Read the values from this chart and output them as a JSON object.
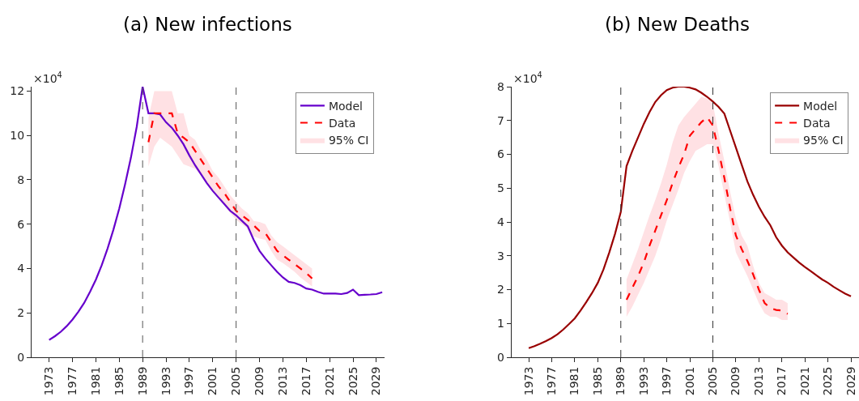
{
  "chart_data": [
    {
      "type": "line",
      "title": "(a) New infections",
      "annotations": [
        "×10$^{4}$"
      ],
      "xlim": [
        1970,
        2030.4
      ],
      "ylim": [
        0,
        12.2
      ],
      "xticks": [
        1973,
        1977,
        1981,
        1985,
        1989,
        1993,
        1997,
        2001,
        2005,
        2009,
        2013,
        2017,
        2021,
        2025,
        2029
      ],
      "yticks": [
        0,
        2,
        4,
        6,
        8,
        10,
        12
      ],
      "legend": "top right",
      "marker": "none",
      "ref_lines": [
        {
          "axis": "x",
          "value": 1989,
          "color": "#555555",
          "line_style": "dashed"
        },
        {
          "axis": "x",
          "value": 2005,
          "color": "#555555",
          "line_style": "dashed"
        }
      ],
      "series": [
        {
          "name": "Model",
          "color": "#6600cc",
          "line_style": "solid",
          "x": [
            1973,
            1974,
            1975,
            1976,
            1977,
            1978,
            1979,
            1980,
            1981,
            1982,
            1983,
            1984,
            1985,
            1986,
            1987,
            1988,
            1989,
            1990,
            1991,
            1992,
            1993,
            1994,
            1995,
            1996,
            1997,
            1998,
            1999,
            2000,
            2001,
            2002,
            2003,
            2004,
            2005,
            2006,
            2007,
            2008,
            2009,
            2010,
            2011,
            2012,
            2013,
            2014,
            2015,
            2016,
            2017,
            2018,
            2019,
            2020,
            2021,
            2022,
            2023,
            2024,
            2025,
            2026,
            2027,
            2028,
            2029,
            2030
          ],
          "values": [
            0.78,
            0.95,
            1.15,
            1.4,
            1.7,
            2.05,
            2.45,
            2.95,
            3.5,
            4.15,
            4.9,
            5.75,
            6.7,
            7.8,
            9.0,
            10.4,
            12.2,
            11.0,
            11.0,
            10.95,
            10.6,
            10.35,
            10.0,
            9.6,
            9.1,
            8.65,
            8.25,
            7.85,
            7.5,
            7.2,
            6.9,
            6.6,
            6.4,
            6.15,
            5.9,
            5.3,
            4.8,
            4.45,
            4.15,
            3.85,
            3.6,
            3.4,
            3.35,
            3.25,
            3.1,
            3.05,
            2.95,
            2.87,
            2.87,
            2.87,
            2.85,
            2.9,
            3.05,
            2.8,
            2.82,
            2.83,
            2.85,
            2.93
          ]
        },
        {
          "name": "Data",
          "color": "#ff0000",
          "line_style": "dashed",
          "x": [
            1990,
            1991,
            1992,
            1993,
            1994,
            1995,
            1996,
            1997,
            1998,
            1999,
            2000,
            2001,
            2002,
            2003,
            2004,
            2005,
            2006,
            2007,
            2008,
            2009,
            2010,
            2011,
            2012,
            2013,
            2014,
            2015,
            2016,
            2017,
            2018
          ],
          "values": [
            9.7,
            11.0,
            11.0,
            11.0,
            11.0,
            10.1,
            9.9,
            9.7,
            9.3,
            8.9,
            8.5,
            8.1,
            7.7,
            7.4,
            7.0,
            6.6,
            6.4,
            6.2,
            5.95,
            5.7,
            5.6,
            5.2,
            4.8,
            4.6,
            4.4,
            4.2,
            4.0,
            3.8,
            3.55
          ]
        },
        {
          "name": "95% CI",
          "type": "area",
          "color": "#ffe1e4",
          "x": [
            1990,
            1991,
            1992,
            1993,
            1994,
            1995,
            1996,
            1997,
            1998,
            1999,
            2000,
            2001,
            2002,
            2003,
            2004,
            2005,
            2006,
            2007,
            2008,
            2009,
            2010,
            2011,
            2012,
            2013,
            2014,
            2015,
            2016,
            2017,
            2018
          ],
          "values": [
            null,
            null,
            null,
            null,
            null,
            null,
            null,
            null,
            null,
            null,
            null,
            null,
            null,
            null,
            null,
            null,
            null,
            null,
            null,
            null,
            null,
            null,
            null,
            null,
            null,
            null,
            null,
            null,
            null
          ],
          "lower": [
            8.6,
            9.5,
            9.9,
            9.7,
            9.5,
            9.1,
            8.7,
            8.6,
            8.5,
            8.2,
            7.9,
            7.5,
            7.15,
            6.85,
            6.5,
            6.2,
            6.0,
            5.8,
            5.45,
            5.35,
            5.3,
            4.8,
            4.4,
            4.25,
            4.05,
            3.85,
            3.6,
            3.4,
            3.2
          ],
          "upper": [
            10.8,
            12.0,
            12.0,
            12.0,
            12.0,
            11.0,
            11.0,
            10.0,
            9.8,
            9.3,
            8.9,
            8.4,
            8.1,
            7.7,
            7.3,
            7.0,
            6.7,
            6.5,
            6.15,
            6.1,
            6.0,
            5.5,
            5.2,
            5.0,
            4.8,
            4.6,
            4.4,
            4.2,
            4.0
          ]
        }
      ]
    },
    {
      "type": "line",
      "title": "(b) New Deaths",
      "annotations": [
        "×10$^{4}$"
      ],
      "xlim": [
        1970,
        2030.4
      ],
      "ylim": [
        0,
        8
      ],
      "xticks": [
        1973,
        1977,
        1981,
        1985,
        1989,
        1993,
        1997,
        2001,
        2005,
        2009,
        2013,
        2017,
        2021,
        2025,
        2029
      ],
      "yticks": [
        0,
        1,
        2,
        3,
        4,
        5,
        6,
        7,
        8
      ],
      "legend": "top right",
      "marker": "none",
      "ref_lines": [
        {
          "axis": "x",
          "value": 1989,
          "color": "#333333",
          "line_style": "dashed"
        },
        {
          "axis": "x",
          "value": 2005,
          "color": "#333333",
          "line_style": "dashed"
        }
      ],
      "series": [
        {
          "name": "Model",
          "color": "#990000",
          "line_style": "solid",
          "x": [
            1973,
            1974,
            1975,
            1976,
            1977,
            1978,
            1979,
            1980,
            1981,
            1982,
            1983,
            1984,
            1985,
            1986,
            1987,
            1988,
            1989,
            1990,
            1991,
            1992,
            1993,
            1994,
            1995,
            1996,
            1997,
            1998,
            1999,
            2000,
            2001,
            2002,
            2003,
            2004,
            2005,
            2006,
            2007,
            2008,
            2009,
            2010,
            2011,
            2012,
            2013,
            2014,
            2015,
            2016,
            2017,
            2018,
            2019,
            2020,
            2021,
            2022,
            2023,
            2024,
            2025,
            2026,
            2027,
            2028,
            2029
          ],
          "values": [
            0.27,
            0.33,
            0.4,
            0.48,
            0.57,
            0.68,
            0.82,
            0.98,
            1.15,
            1.38,
            1.63,
            1.9,
            2.2,
            2.6,
            3.1,
            3.65,
            4.3,
            5.65,
            6.1,
            6.5,
            6.9,
            7.25,
            7.55,
            7.75,
            7.9,
            7.97,
            8.0,
            8.0,
            7.97,
            7.92,
            7.82,
            7.7,
            7.56,
            7.4,
            7.2,
            6.7,
            6.2,
            5.7,
            5.2,
            4.8,
            4.45,
            4.15,
            3.9,
            3.55,
            3.3,
            3.1,
            2.95,
            2.8,
            2.67,
            2.55,
            2.42,
            2.3,
            2.2,
            2.08,
            1.98,
            1.88,
            1.8
          ]
        },
        {
          "name": "Data",
          "color": "#ff0000",
          "line_style": "dashed",
          "x": [
            1990,
            1991,
            1992,
            1993,
            1994,
            1995,
            1996,
            1997,
            1998,
            1999,
            2000,
            2001,
            2002,
            2003,
            2004,
            2005,
            2006,
            2007,
            2008,
            2009,
            2010,
            2011,
            2012,
            2013,
            2014,
            2015,
            2016,
            2017,
            2018
          ],
          "values": [
            1.7,
            2.05,
            2.4,
            2.8,
            3.3,
            3.75,
            4.2,
            4.65,
            5.15,
            5.6,
            6.0,
            6.55,
            6.75,
            6.95,
            7.1,
            6.85,
            6.1,
            5.3,
            4.4,
            3.6,
            3.2,
            2.85,
            2.45,
            2.0,
            1.6,
            1.45,
            1.4,
            1.38,
            1.28
          ]
        },
        {
          "name": "95% CI",
          "type": "area",
          "color": "#ffe1e4",
          "x": [
            1990,
            1991,
            1992,
            1993,
            1994,
            1995,
            1996,
            1997,
            1998,
            1999,
            2000,
            2001,
            2002,
            2003,
            2004,
            2005,
            2006,
            2007,
            2008,
            2009,
            2010,
            2011,
            2012,
            2013,
            2014,
            2015,
            2016,
            2017,
            2018
          ],
          "values": [
            null,
            null,
            null,
            null,
            null,
            null,
            null,
            null,
            null,
            null,
            null,
            null,
            null,
            null,
            null,
            null,
            null,
            null,
            null,
            null,
            null,
            null,
            null,
            null,
            null,
            null,
            null,
            null,
            null
          ],
          "lower": [
            1.2,
            1.5,
            1.85,
            2.2,
            2.6,
            3.0,
            3.5,
            4.05,
            4.5,
            4.95,
            5.45,
            5.8,
            6.1,
            6.2,
            6.3,
            6.3,
            5.65,
            4.8,
            4.0,
            3.1,
            2.75,
            2.4,
            2.0,
            1.6,
            1.3,
            1.2,
            1.2,
            1.1,
            1.1
          ],
          "upper": [
            2.3,
            2.75,
            3.2,
            3.7,
            4.2,
            4.65,
            5.15,
            5.7,
            6.35,
            6.85,
            7.1,
            7.3,
            7.5,
            7.7,
            7.65,
            7.5,
            6.6,
            5.8,
            4.9,
            4.1,
            3.6,
            3.3,
            2.7,
            2.2,
            1.9,
            1.8,
            1.7,
            1.7,
            1.6
          ]
        }
      ]
    }
  ]
}
